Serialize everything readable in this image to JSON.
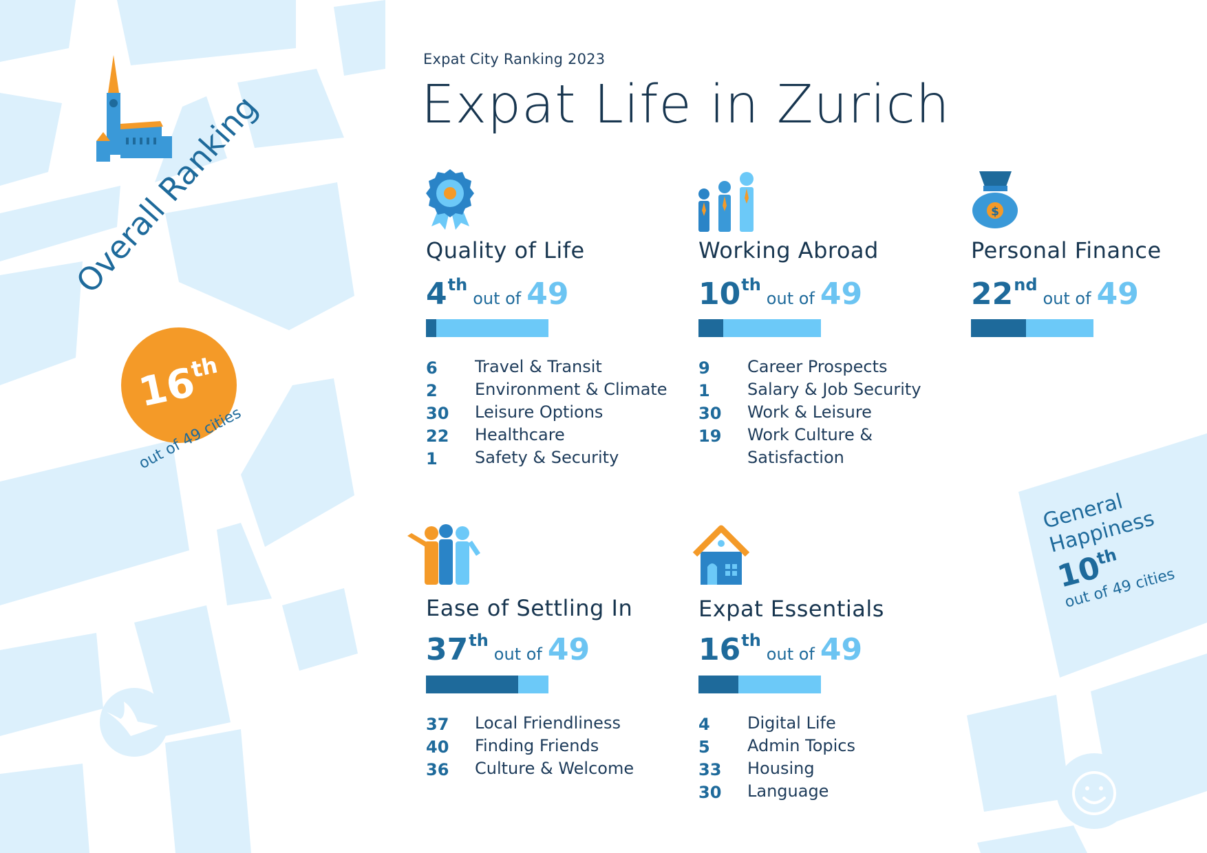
{
  "header": {
    "eyebrow": "Expat City Ranking 2023",
    "title": "Expat Life in Zurich"
  },
  "overall": {
    "label": "Overall Ranking",
    "rank": "16",
    "suffix": "th",
    "subtitle": "out of 49 cities"
  },
  "general_happiness": {
    "label": "General Happiness",
    "rank": "10",
    "suffix": "th",
    "subtitle": "out of 49 cities"
  },
  "colors": {
    "map_block": "#dcf0fc",
    "dark_blue": "#1e6a9b",
    "light_blue": "#6cc9f8",
    "orange": "#f49a28"
  },
  "categories": [
    {
      "name": "Quality of Life",
      "icon": "award-badge-icon",
      "rank": "4",
      "suffix": "th",
      "out_of": "out of",
      "total": "49",
      "progress": 0.0816,
      "subs": [
        {
          "rank": "6",
          "label": "Travel & Transit"
        },
        {
          "rank": "2",
          "label": "Environment & Climate"
        },
        {
          "rank": "30",
          "label": "Leisure Options"
        },
        {
          "rank": "22",
          "label": "Healthcare"
        },
        {
          "rank": "1",
          "label": "Safety & Security"
        }
      ]
    },
    {
      "name": "Working Abroad",
      "icon": "business-people-icon",
      "rank": "10",
      "suffix": "th",
      "out_of": "out of",
      "total": "49",
      "progress": 0.2041,
      "subs": [
        {
          "rank": "9",
          "label": "Career Prospects"
        },
        {
          "rank": "1",
          "label": "Salary & Job Security"
        },
        {
          "rank": "30",
          "label": "Work & Leisure"
        },
        {
          "rank": "19",
          "label": "Work Culture &"
        },
        {
          "rank": "",
          "label": "Satisfaction"
        }
      ]
    },
    {
      "name": "Personal Finance",
      "icon": "money-bag-icon",
      "rank": "22",
      "suffix": "nd",
      "out_of": "out of",
      "total": "49",
      "progress": 0.449,
      "subs": []
    },
    {
      "name": "Ease of Settling In",
      "icon": "friends-group-icon",
      "rank": "37",
      "suffix": "th",
      "out_of": "out of",
      "total": "49",
      "progress": 0.7551,
      "subs": [
        {
          "rank": "37",
          "label": "Local Friendliness"
        },
        {
          "rank": "40",
          "label": "Finding Friends"
        },
        {
          "rank": "36",
          "label": "Culture & Welcome"
        }
      ]
    },
    {
      "name": "Expat Essentials",
      "icon": "house-icon",
      "rank": "16",
      "suffix": "th",
      "out_of": "out of",
      "total": "49",
      "progress": 0.3265,
      "subs": [
        {
          "rank": "4",
          "label": "Digital Life"
        },
        {
          "rank": "5",
          "label": "Admin Topics"
        },
        {
          "rank": "33",
          "label": "Housing"
        },
        {
          "rank": "30",
          "label": "Language"
        }
      ]
    }
  ]
}
